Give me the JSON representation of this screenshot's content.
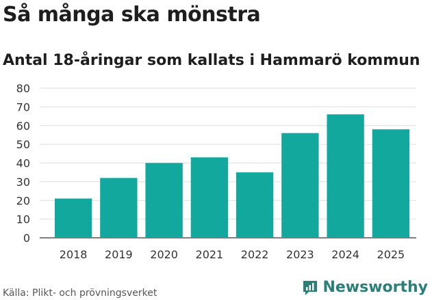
{
  "title": "Så många ska mönstra",
  "subtitle": "Antal 18-åringar som kallats i Hammarö kommun",
  "chart_data": {
    "type": "bar",
    "categories": [
      "2018",
      "2019",
      "2020",
      "2021",
      "2022",
      "2023",
      "2024",
      "2025"
    ],
    "values": [
      21,
      32,
      40,
      43,
      35,
      56,
      66,
      58
    ],
    "ylim": [
      0,
      80
    ],
    "yticks": [
      0,
      10,
      20,
      30,
      40,
      50,
      60,
      70,
      80
    ],
    "xlabel": "",
    "ylabel": "",
    "grid": true,
    "bar_color": "#13a89e"
  },
  "footer": {
    "source": "Källa: Plikt- och prövningsverket",
    "brand": "Newsworthy",
    "brand_color": "#2a7f76"
  }
}
